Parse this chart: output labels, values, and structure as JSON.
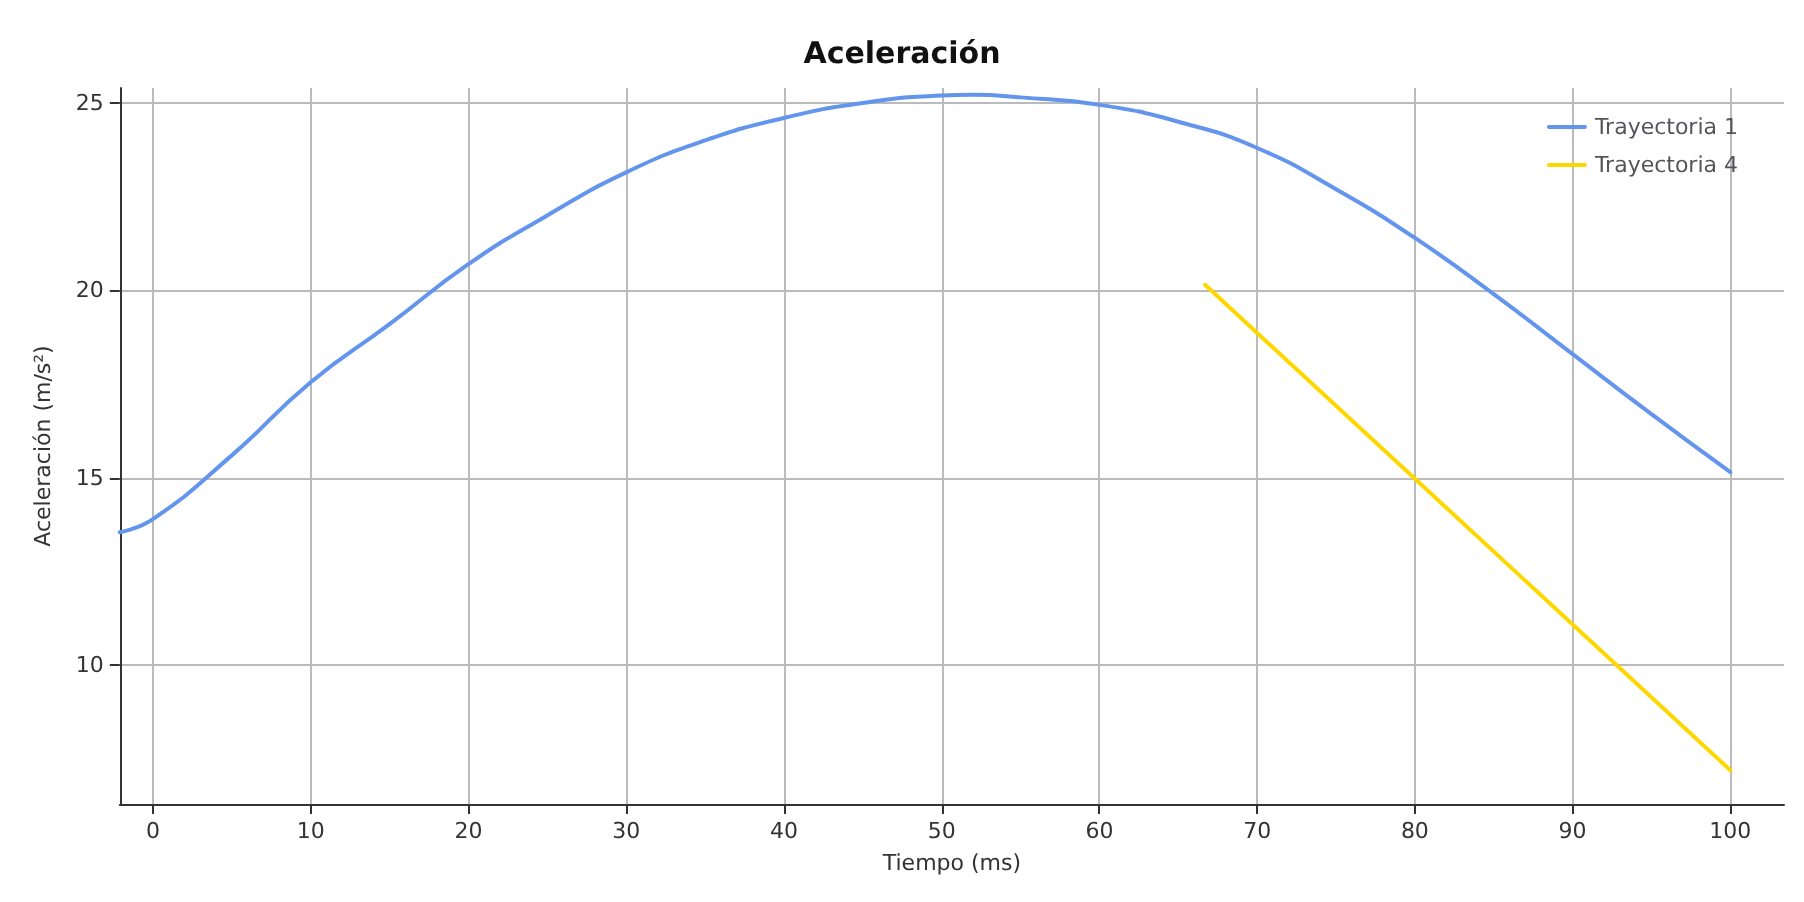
{
  "chart_data": {
    "type": "line",
    "title": "Aceleración",
    "xlabel": "Tiempo (ms)",
    "ylabel": "Aceleración (m/s²)",
    "xlim": [
      -2.1,
      103.4
    ],
    "xticks": [
      0,
      10,
      20,
      30,
      40,
      50,
      60,
      70,
      80,
      90,
      100
    ],
    "ylim": [
      6.3,
      25.4
    ],
    "yticks": [
      10,
      15,
      20,
      25
    ],
    "grid": true,
    "legend": "top right",
    "marker": "none",
    "line_style": "solid",
    "series": [
      {
        "name": "Trayectoria 1",
        "color": "#6495ed",
        "x": [
          -2.1,
          0,
          5,
          10,
          15,
          20,
          25,
          30,
          35,
          40,
          45,
          50,
          52,
          55,
          60,
          65,
          70,
          75,
          80,
          85,
          90,
          95,
          100
        ],
        "values": [
          13.55,
          13.9,
          15.6,
          17.55,
          19.1,
          20.7,
          22.0,
          23.15,
          24.0,
          24.6,
          25.0,
          25.2,
          25.22,
          25.15,
          24.95,
          24.5,
          23.8,
          22.7,
          21.4,
          19.9,
          18.3,
          16.7,
          15.15
        ]
      },
      {
        "name": "Trayectoria 4",
        "color": "#ffd700",
        "x": [
          66.7,
          100
        ],
        "values": [
          20.15,
          7.2
        ]
      }
    ]
  }
}
